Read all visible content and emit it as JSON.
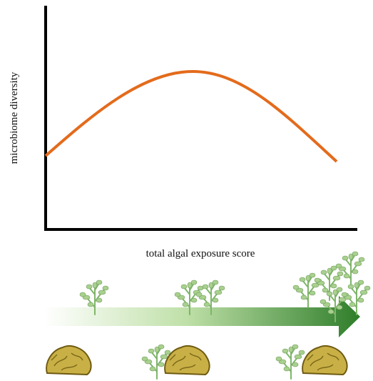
{
  "axes": {
    "y_label": "microbiome diversity",
    "x_label": "total algal exposure score"
  }
}
